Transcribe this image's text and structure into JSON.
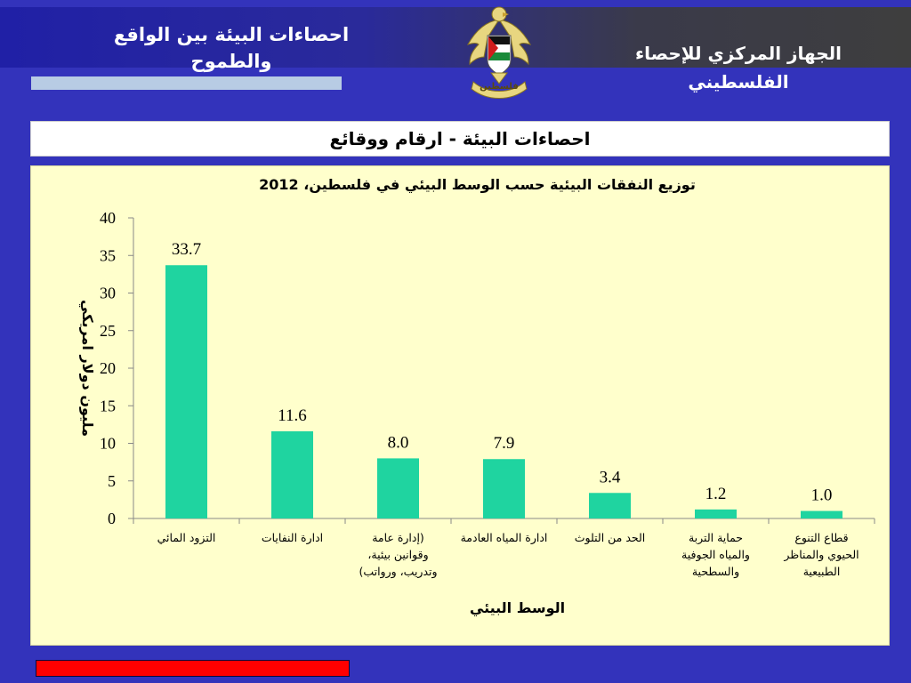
{
  "header": {
    "title_left": "احصاءات البيئة بين الواقع والطموح",
    "title_right": "الجهاز المركزي للإحصاء الفلسطيني",
    "emblem_text": "فلسطين",
    "emblem_icon": "palestine-eagle-emblem-icon"
  },
  "subtitle": "احصاءات البيئة - ارقام ووقائع",
  "colors": {
    "background": "#3333bb",
    "bar": "#1fd4a0",
    "panel": "#ffffcc",
    "red_bar": "#ff0000"
  },
  "chart_data": {
    "type": "bar",
    "title": "توزيع النفقات البيئية حسب الوسط البيئي في فلسطين، 2012",
    "ylabel": "مليون دولار امريكي",
    "xlabel": "الوسط البيئي",
    "ylim": [
      0,
      40
    ],
    "yticks": [
      0,
      5,
      10,
      15,
      20,
      25,
      30,
      35,
      40
    ],
    "ytick_labels": [
      "0",
      "5",
      "10",
      "15",
      "20",
      "25",
      "30",
      "35",
      "40"
    ],
    "categories": [
      [
        "التزود المائي"
      ],
      [
        "ادارة النفايات"
      ],
      [
        "(إدارة عامة",
        "وقوانين بيئية،",
        "وتدريب، ورواتب)"
      ],
      [
        "ادارة المياه العادمة"
      ],
      [
        "الحد من التلوث"
      ],
      [
        "حماية التربة",
        "والمياه الجوفية",
        "والسطحية"
      ],
      [
        "قطاع التنوع",
        "الحيوي والمناظر",
        "الطبيعية"
      ]
    ],
    "values": [
      33.7,
      11.6,
      8.0,
      7.9,
      3.4,
      1.2,
      1.0
    ],
    "value_labels": [
      "33.7",
      "11.6",
      "8.0",
      "7.9",
      "3.4",
      "1.2",
      "1.0"
    ],
    "grid": false,
    "legend": "none"
  }
}
